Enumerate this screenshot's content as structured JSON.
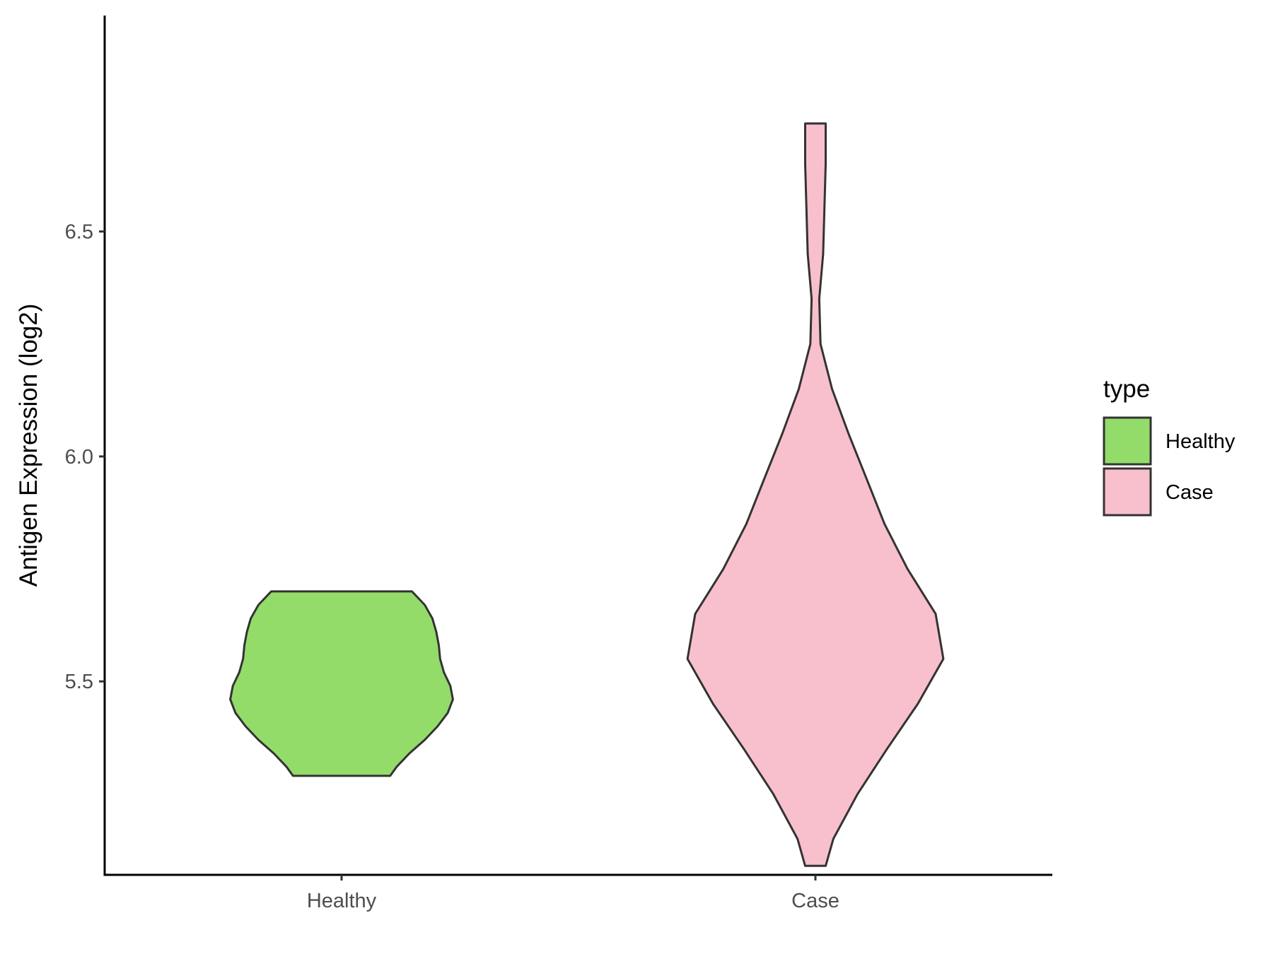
{
  "chart_data": {
    "type": "violin",
    "ylabel": "Antigen Expression (log2)",
    "xlabel": "",
    "categories": [
      "Healthy",
      "Case"
    ],
    "ylim": [
      5.07,
      6.98
    ],
    "y_ticks": [
      5.5,
      6.0,
      6.5
    ],
    "y_tick_labels": [
      "5.5",
      "6.0",
      "6.5"
    ],
    "grid": false,
    "legend": {
      "title": "type",
      "position": "right",
      "entries": [
        {
          "label": "Healthy",
          "color": "#93DC6A"
        },
        {
          "label": "Case",
          "color": "#F8C0CC"
        }
      ]
    },
    "series": [
      {
        "name": "Healthy",
        "color": "#93DC6A",
        "min": 5.29,
        "max": 5.7,
        "density": [
          {
            "y": 5.29,
            "w": 0.38
          },
          {
            "y": 5.31,
            "w": 0.43
          },
          {
            "y": 5.34,
            "w": 0.53
          },
          {
            "y": 5.37,
            "w": 0.65
          },
          {
            "y": 5.4,
            "w": 0.75
          },
          {
            "y": 5.43,
            "w": 0.83
          },
          {
            "y": 5.46,
            "w": 0.87
          },
          {
            "y": 5.49,
            "w": 0.85
          },
          {
            "y": 5.52,
            "w": 0.8
          },
          {
            "y": 5.55,
            "w": 0.77
          },
          {
            "y": 5.58,
            "w": 0.76
          },
          {
            "y": 5.61,
            "w": 0.74
          },
          {
            "y": 5.64,
            "w": 0.71
          },
          {
            "y": 5.67,
            "w": 0.65
          },
          {
            "y": 5.7,
            "w": 0.55
          }
        ]
      },
      {
        "name": "Case",
        "color": "#F8C0CC",
        "min": 5.09,
        "max": 6.74,
        "density": [
          {
            "y": 5.09,
            "w": 0.08
          },
          {
            "y": 5.15,
            "w": 0.14
          },
          {
            "y": 5.25,
            "w": 0.33
          },
          {
            "y": 5.35,
            "w": 0.56
          },
          {
            "y": 5.45,
            "w": 0.8
          },
          {
            "y": 5.55,
            "w": 1.0
          },
          {
            "y": 5.65,
            "w": 0.94
          },
          {
            "y": 5.75,
            "w": 0.72
          },
          {
            "y": 5.85,
            "w": 0.54
          },
          {
            "y": 5.95,
            "w": 0.4
          },
          {
            "y": 6.05,
            "w": 0.26
          },
          {
            "y": 6.15,
            "w": 0.13
          },
          {
            "y": 6.25,
            "w": 0.04
          },
          {
            "y": 6.35,
            "w": 0.03
          },
          {
            "y": 6.45,
            "w": 0.06
          },
          {
            "y": 6.55,
            "w": 0.07
          },
          {
            "y": 6.65,
            "w": 0.08
          },
          {
            "y": 6.74,
            "w": 0.08
          }
        ]
      }
    ]
  }
}
